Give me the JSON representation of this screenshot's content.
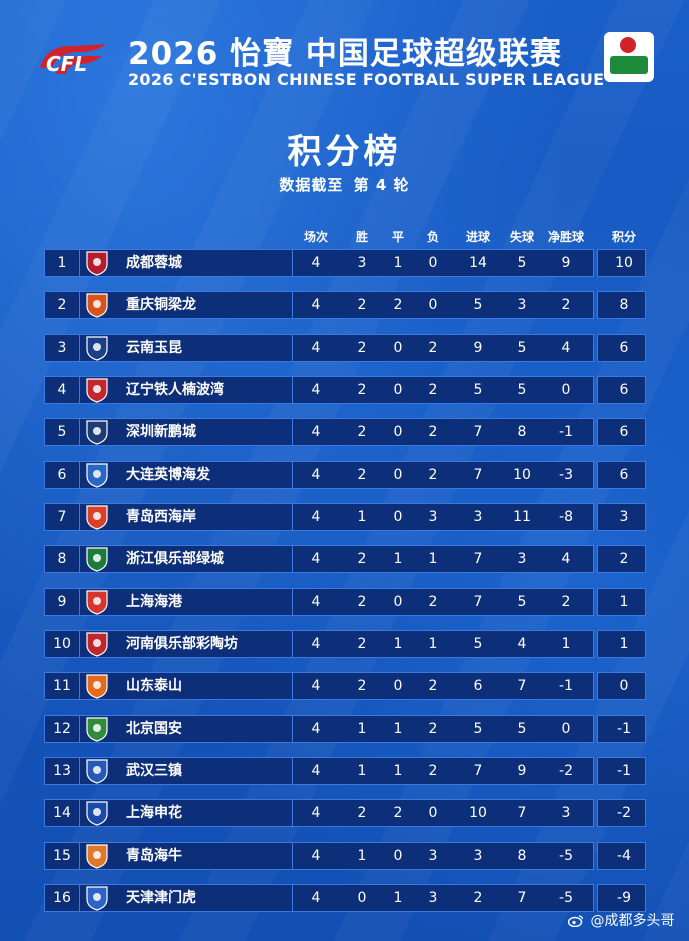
{
  "header": {
    "title_cn": "2026 怡寶 中国足球超级联赛",
    "title_en": "2026 C'ESTBON CHINESE FOOTBALL SUPER LEAGUE",
    "page_title": "积分榜",
    "subtitle_prefix": "数据截至",
    "subtitle_round": "第 4 轮"
  },
  "columns": [
    "场次",
    "胜",
    "平",
    "负",
    "进球",
    "失球",
    "净胜球",
    "积分"
  ],
  "teams": [
    {
      "rank": "1",
      "name": "成都蓉城",
      "played": "4",
      "won": "3",
      "drawn": "1",
      "lost": "0",
      "gf": "14",
      "ga": "5",
      "gd": "9",
      "pts": "10",
      "color": "#b51d2c"
    },
    {
      "rank": "2",
      "name": "重庆铜梁龙",
      "played": "4",
      "won": "2",
      "drawn": "2",
      "lost": "0",
      "gf": "5",
      "ga": "3",
      "gd": "2",
      "pts": "8",
      "color": "#d9531e"
    },
    {
      "rank": "3",
      "name": "云南玉昆",
      "played": "4",
      "won": "2",
      "drawn": "0",
      "lost": "2",
      "gf": "9",
      "ga": "5",
      "gd": "4",
      "pts": "6",
      "color": "#1c3f86"
    },
    {
      "rank": "4",
      "name": "辽宁铁人楠波湾",
      "played": "4",
      "won": "2",
      "drawn": "0",
      "lost": "2",
      "gf": "5",
      "ga": "5",
      "gd": "0",
      "pts": "6",
      "color": "#c4262e"
    },
    {
      "rank": "5",
      "name": "深圳新鹏城",
      "played": "4",
      "won": "2",
      "drawn": "0",
      "lost": "2",
      "gf": "7",
      "ga": "8",
      "gd": "-1",
      "pts": "6",
      "color": "#1d3c78"
    },
    {
      "rank": "6",
      "name": "大连英博海发",
      "played": "4",
      "won": "2",
      "drawn": "0",
      "lost": "2",
      "gf": "7",
      "ga": "10",
      "gd": "-3",
      "pts": "6",
      "color": "#2a66c4"
    },
    {
      "rank": "7",
      "name": "青岛西海岸",
      "played": "4",
      "won": "1",
      "drawn": "0",
      "lost": "3",
      "gf": "3",
      "ga": "11",
      "gd": "-8",
      "pts": "3",
      "color": "#d8402a"
    },
    {
      "rank": "8",
      "name": "浙江俱乐部绿城",
      "played": "4",
      "won": "2",
      "drawn": "1",
      "lost": "1",
      "gf": "7",
      "ga": "3",
      "gd": "4",
      "pts": "2",
      "color": "#1e7a3c"
    },
    {
      "rank": "9",
      "name": "上海海港",
      "played": "4",
      "won": "2",
      "drawn": "0",
      "lost": "2",
      "gf": "7",
      "ga": "5",
      "gd": "2",
      "pts": "1",
      "color": "#d8342c"
    },
    {
      "rank": "10",
      "name": "河南俱乐部彩陶坊",
      "played": "4",
      "won": "2",
      "drawn": "1",
      "lost": "1",
      "gf": "5",
      "ga": "4",
      "gd": "1",
      "pts": "1",
      "color": "#c0262c"
    },
    {
      "rank": "11",
      "name": "山东泰山",
      "played": "4",
      "won": "2",
      "drawn": "0",
      "lost": "2",
      "gf": "6",
      "ga": "7",
      "gd": "-1",
      "pts": "0",
      "color": "#e56a1c"
    },
    {
      "rank": "12",
      "name": "北京国安",
      "played": "4",
      "won": "1",
      "drawn": "1",
      "lost": "2",
      "gf": "5",
      "ga": "5",
      "gd": "0",
      "pts": "-1",
      "color": "#2f8a3a"
    },
    {
      "rank": "13",
      "name": "武汉三镇",
      "played": "4",
      "won": "1",
      "drawn": "1",
      "lost": "2",
      "gf": "7",
      "ga": "9",
      "gd": "-2",
      "pts": "-1",
      "color": "#2659b8"
    },
    {
      "rank": "14",
      "name": "上海申花",
      "played": "4",
      "won": "2",
      "drawn": "2",
      "lost": "0",
      "gf": "10",
      "ga": "7",
      "gd": "3",
      "pts": "-2",
      "color": "#1b4aa8"
    },
    {
      "rank": "15",
      "name": "青岛海牛",
      "played": "4",
      "won": "1",
      "drawn": "0",
      "lost": "3",
      "gf": "3",
      "ga": "8",
      "gd": "-5",
      "pts": "-4",
      "color": "#e0782a"
    },
    {
      "rank": "16",
      "name": "天津津门虎",
      "played": "4",
      "won": "0",
      "drawn": "1",
      "lost": "3",
      "gf": "2",
      "ga": "7",
      "gd": "-5",
      "pts": "-9",
      "color": "#2c63c8"
    }
  ],
  "watermark": "@成都多头哥",
  "colors": {
    "background": "#1553b8",
    "row_fill": "#0d2f7a",
    "row_border": "#3a7ae0",
    "csl_green": "#1e8a3c",
    "cfl_red": "#d2232a"
  }
}
